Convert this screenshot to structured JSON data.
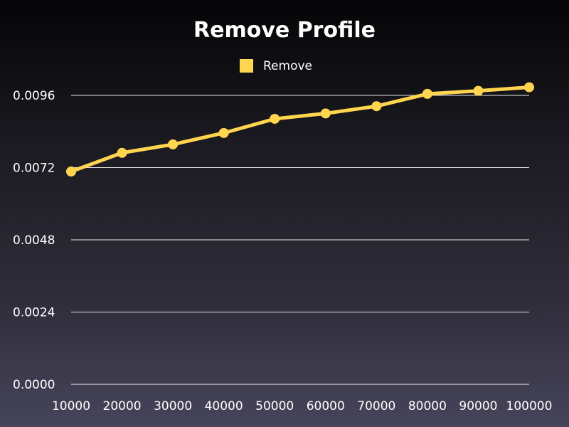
{
  "chart_data": {
    "type": "line",
    "title": "Remove Profile",
    "xlabel": "",
    "ylabel": "",
    "x": [
      10000,
      20000,
      30000,
      40000,
      50000,
      60000,
      70000,
      80000,
      90000,
      100000
    ],
    "x_tick_labels": [
      "10000",
      "20000",
      "30000",
      "40000",
      "50000",
      "60000",
      "70000",
      "80000",
      "90000",
      "100000"
    ],
    "y_tick_labels": [
      "0.0000",
      "0.0024",
      "0.0048",
      "0.0072",
      "0.0096"
    ],
    "y_ticks": [
      0,
      0.0024,
      0.0048,
      0.0072,
      0.0096
    ],
    "ylim": [
      0,
      0.0096
    ],
    "grid": true,
    "legend_position": "top-center",
    "series": [
      {
        "name": "Remove",
        "color": "#ffd54f",
        "values": [
          0.00707,
          0.00769,
          0.00797,
          0.00835,
          0.00882,
          0.009,
          0.00924,
          0.00965,
          0.00975,
          0.00987
        ]
      }
    ]
  }
}
